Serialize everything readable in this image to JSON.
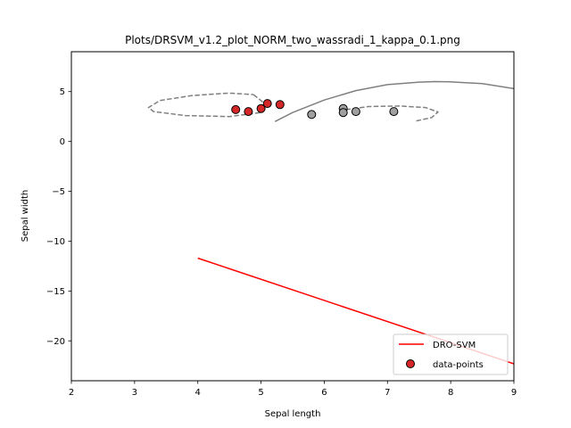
{
  "chart_data": {
    "type": "scatter",
    "title": "Plots/DRSVM_v1.2_plot_NORM_two_wassradi_1_kappa_0.1.png",
    "xlabel": "Sepal length",
    "ylabel": "Sepal width",
    "xlim": [
      2,
      9
    ],
    "ylim": [
      -24,
      9
    ],
    "xticks": [
      2,
      3,
      4,
      5,
      6,
      7,
      8,
      9
    ],
    "yticks": [
      5,
      0,
      -5,
      -10,
      -15,
      -20
    ],
    "ytick_labels": [
      "5",
      "0",
      "−5",
      "−10",
      "−15",
      "−20"
    ],
    "legend": {
      "placement": "lower-right",
      "entries": [
        "DRO-SVM",
        "data-points"
      ]
    },
    "colors": {
      "dro_svm": "#ff0000",
      "boundary": "#808080",
      "class_a": "#d62728",
      "class_b": "#a0a0a0",
      "point_edge": "#000000"
    },
    "series": [
      {
        "name": "DRO-SVM",
        "kind": "line",
        "x": [
          4.0,
          9.0
        ],
        "y": [
          -11.7,
          -22.3
        ]
      },
      {
        "kind": "curve",
        "style": "solid",
        "x": [
          5.22,
          5.5,
          6.0,
          6.5,
          7.0,
          7.5,
          7.75,
          8.0,
          8.5,
          9.0
        ],
        "y": [
          2.0,
          2.9,
          4.15,
          5.1,
          5.7,
          5.95,
          6.0,
          5.98,
          5.8,
          5.3
        ]
      },
      {
        "kind": "ellipse",
        "style": "dashed",
        "x": [
          4.88,
          5.0,
          5.1,
          5.0,
          4.5,
          3.8,
          3.3,
          3.22,
          3.4,
          3.9,
          4.5,
          4.88
        ],
        "y": [
          4.7,
          4.1,
          3.5,
          2.9,
          2.5,
          2.6,
          3.0,
          3.4,
          4.1,
          4.6,
          4.85,
          4.7
        ]
      },
      {
        "kind": "arc",
        "style": "dashed",
        "x": [
          6.28,
          6.35,
          6.7,
          7.2,
          7.6,
          7.8,
          7.7,
          7.45
        ],
        "y": [
          2.55,
          3.2,
          3.5,
          3.55,
          3.4,
          2.95,
          2.4,
          2.05
        ]
      }
    ],
    "points": [
      {
        "x": 4.6,
        "y": 3.2,
        "class": "a"
      },
      {
        "x": 4.8,
        "y": 3.0,
        "class": "a"
      },
      {
        "x": 5.0,
        "y": 3.3,
        "class": "a"
      },
      {
        "x": 5.1,
        "y": 3.8,
        "class": "a"
      },
      {
        "x": 5.3,
        "y": 3.7,
        "class": "a"
      },
      {
        "x": 5.8,
        "y": 2.7,
        "class": "b"
      },
      {
        "x": 6.3,
        "y": 3.3,
        "class": "b"
      },
      {
        "x": 6.3,
        "y": 2.9,
        "class": "b"
      },
      {
        "x": 6.5,
        "y": 3.0,
        "class": "b"
      },
      {
        "x": 7.1,
        "y": 3.0,
        "class": "b"
      }
    ]
  }
}
